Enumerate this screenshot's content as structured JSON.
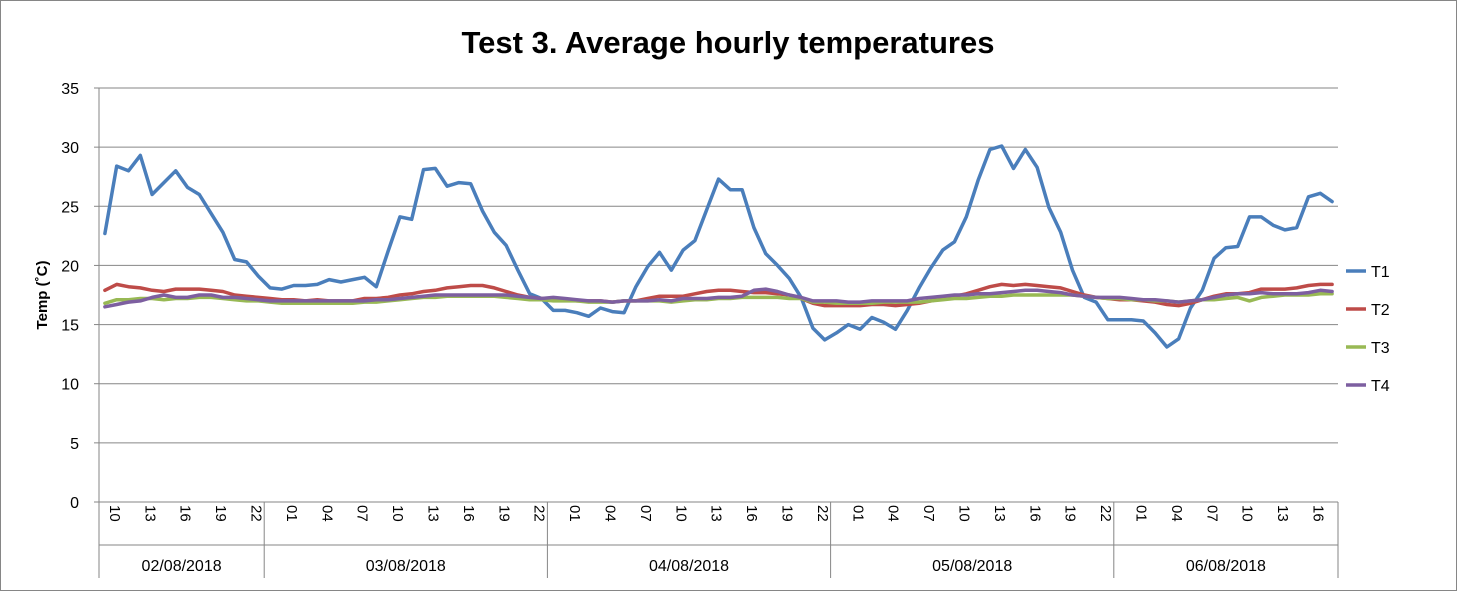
{
  "chart_data": {
    "type": "line",
    "title": "Test 3. Average hourly temperatures",
    "xlabel": "",
    "ylabel": "Temp (˚C)",
    "ylim": [
      0,
      35
    ],
    "ystep": 5,
    "yticks": [
      "0",
      "5",
      "10",
      "15",
      "20",
      "25",
      "30",
      "35"
    ],
    "grid": true,
    "legend_position": "right",
    "label_every": 3,
    "days": [
      {
        "label": "02/08/2018",
        "hours": [
          "10",
          "11",
          "12",
          "13",
          "14",
          "15",
          "16",
          "17",
          "18",
          "19",
          "20",
          "21",
          "22",
          "23"
        ]
      },
      {
        "label": "03/08/2018",
        "hours": [
          "00",
          "01",
          "02",
          "03",
          "04",
          "05",
          "06",
          "07",
          "08",
          "09",
          "10",
          "11",
          "12",
          "13",
          "14",
          "15",
          "16",
          "17",
          "18",
          "19",
          "20",
          "21",
          "22",
          "23"
        ]
      },
      {
        "label": "04/08/2018",
        "hours": [
          "00",
          "01",
          "02",
          "03",
          "04",
          "05",
          "06",
          "07",
          "08",
          "09",
          "10",
          "11",
          "12",
          "13",
          "14",
          "15",
          "16",
          "17",
          "18",
          "19",
          "20",
          "21",
          "22",
          "23"
        ]
      },
      {
        "label": "05/08/2018",
        "hours": [
          "00",
          "01",
          "02",
          "03",
          "04",
          "05",
          "06",
          "07",
          "08",
          "09",
          "10",
          "11",
          "12",
          "13",
          "14",
          "15",
          "16",
          "17",
          "18",
          "19",
          "20",
          "21",
          "22",
          "23"
        ]
      },
      {
        "label": "06/08/2018",
        "hours": [
          "00",
          "01",
          "02",
          "03",
          "04",
          "05",
          "06",
          "07",
          "08",
          "09",
          "10",
          "11",
          "12",
          "13",
          "14",
          "15",
          "16",
          "17",
          "18"
        ]
      }
    ],
    "series": [
      {
        "name": "T1",
        "color": "#4a7ebb",
        "values": [
          22.7,
          28.4,
          28.0,
          29.3,
          26.0,
          27.0,
          28.0,
          26.6,
          26.0,
          24.4,
          22.8,
          20.5,
          20.3,
          19.1,
          18.1,
          18.0,
          18.3,
          18.3,
          18.4,
          18.8,
          18.6,
          18.8,
          19.0,
          18.2,
          21.2,
          24.1,
          23.9,
          28.1,
          28.2,
          26.7,
          27.0,
          26.9,
          24.6,
          22.8,
          21.7,
          19.6,
          17.6,
          17.2,
          16.2,
          16.2,
          16.0,
          15.7,
          16.4,
          16.1,
          16.0,
          18.2,
          19.9,
          21.1,
          19.6,
          21.3,
          22.1,
          24.7,
          27.3,
          26.4,
          26.4,
          23.2,
          21.0,
          20.0,
          18.9,
          17.3,
          14.7,
          13.7,
          14.3,
          15.0,
          14.6,
          15.6,
          15.2,
          14.6,
          16.2,
          18.1,
          19.8,
          21.3,
          22.0,
          24.1,
          27.2,
          29.8,
          30.1,
          28.2,
          29.8,
          28.3,
          24.9,
          22.8,
          19.6,
          17.3,
          16.9,
          15.4,
          15.4,
          15.4,
          15.3,
          14.3,
          13.1,
          13.8,
          16.4,
          17.9,
          20.6,
          21.5,
          21.6,
          24.1,
          24.1,
          23.4,
          23.0,
          23.2,
          25.8,
          26.1,
          25.4
        ]
      },
      {
        "name": "T2",
        "color": "#be4b48",
        "values": [
          17.9,
          18.4,
          18.2,
          18.1,
          17.9,
          17.8,
          18.0,
          18.0,
          18.0,
          17.9,
          17.8,
          17.5,
          17.4,
          17.3,
          17.2,
          17.1,
          17.1,
          17.0,
          17.1,
          17.0,
          17.0,
          17.0,
          17.2,
          17.2,
          17.3,
          17.5,
          17.6,
          17.8,
          17.9,
          18.1,
          18.2,
          18.3,
          18.3,
          18.1,
          17.8,
          17.5,
          17.3,
          17.2,
          17.2,
          17.1,
          17.0,
          17.0,
          17.0,
          16.9,
          17.0,
          17.0,
          17.2,
          17.4,
          17.4,
          17.4,
          17.6,
          17.8,
          17.9,
          17.9,
          17.8,
          17.7,
          17.7,
          17.6,
          17.5,
          17.2,
          16.8,
          16.6,
          16.6,
          16.6,
          16.6,
          16.7,
          16.7,
          16.6,
          16.7,
          16.8,
          17.0,
          17.2,
          17.4,
          17.6,
          17.9,
          18.2,
          18.4,
          18.3,
          18.4,
          18.3,
          18.2,
          18.1,
          17.8,
          17.5,
          17.3,
          17.2,
          17.1,
          17.1,
          17.0,
          16.9,
          16.7,
          16.6,
          16.8,
          17.1,
          17.4,
          17.6,
          17.6,
          17.7,
          18.0,
          18.0,
          18.0,
          18.1,
          18.3,
          18.4,
          18.4
        ]
      },
      {
        "name": "T3",
        "color": "#98b954",
        "values": [
          16.8,
          17.1,
          17.1,
          17.2,
          17.2,
          17.1,
          17.2,
          17.2,
          17.3,
          17.3,
          17.2,
          17.1,
          17.0,
          17.0,
          16.9,
          16.8,
          16.8,
          16.8,
          16.8,
          16.8,
          16.8,
          16.8,
          16.9,
          16.9,
          17.0,
          17.1,
          17.2,
          17.3,
          17.3,
          17.4,
          17.4,
          17.4,
          17.4,
          17.4,
          17.3,
          17.2,
          17.1,
          17.1,
          17.0,
          17.0,
          17.0,
          16.9,
          16.9,
          16.9,
          17.0,
          17.0,
          17.0,
          17.0,
          16.9,
          17.0,
          17.1,
          17.1,
          17.2,
          17.2,
          17.3,
          17.3,
          17.3,
          17.3,
          17.2,
          17.2,
          16.9,
          16.9,
          16.8,
          16.8,
          16.8,
          16.8,
          16.9,
          16.9,
          16.9,
          16.9,
          17.0,
          17.1,
          17.2,
          17.2,
          17.3,
          17.4,
          17.4,
          17.5,
          17.5,
          17.5,
          17.5,
          17.5,
          17.5,
          17.4,
          17.3,
          17.2,
          17.2,
          17.1,
          17.1,
          17.0,
          17.0,
          16.9,
          17.0,
          17.1,
          17.1,
          17.2,
          17.3,
          17.0,
          17.3,
          17.4,
          17.5,
          17.5,
          17.5,
          17.6,
          17.6
        ]
      },
      {
        "name": "T4",
        "color": "#7d5fa0",
        "values": [
          16.5,
          16.7,
          16.9,
          17.0,
          17.3,
          17.5,
          17.3,
          17.3,
          17.5,
          17.5,
          17.3,
          17.3,
          17.2,
          17.1,
          17.0,
          17.0,
          17.0,
          17.0,
          17.0,
          17.0,
          17.0,
          17.0,
          17.0,
          17.1,
          17.1,
          17.2,
          17.3,
          17.4,
          17.5,
          17.5,
          17.5,
          17.5,
          17.5,
          17.5,
          17.5,
          17.4,
          17.3,
          17.2,
          17.3,
          17.2,
          17.1,
          17.0,
          17.0,
          16.9,
          17.0,
          17.0,
          17.0,
          17.1,
          17.0,
          17.2,
          17.2,
          17.2,
          17.3,
          17.3,
          17.4,
          17.9,
          18.0,
          17.8,
          17.5,
          17.3,
          17.0,
          17.0,
          17.0,
          16.9,
          16.9,
          17.0,
          17.0,
          17.0,
          17.0,
          17.2,
          17.3,
          17.4,
          17.5,
          17.5,
          17.6,
          17.6,
          17.7,
          17.8,
          17.9,
          17.9,
          17.8,
          17.7,
          17.5,
          17.4,
          17.3,
          17.3,
          17.3,
          17.2,
          17.1,
          17.1,
          17.0,
          16.9,
          17.0,
          17.1,
          17.3,
          17.5,
          17.6,
          17.6,
          17.7,
          17.6,
          17.6,
          17.6,
          17.7,
          17.9,
          17.8
        ]
      }
    ]
  }
}
